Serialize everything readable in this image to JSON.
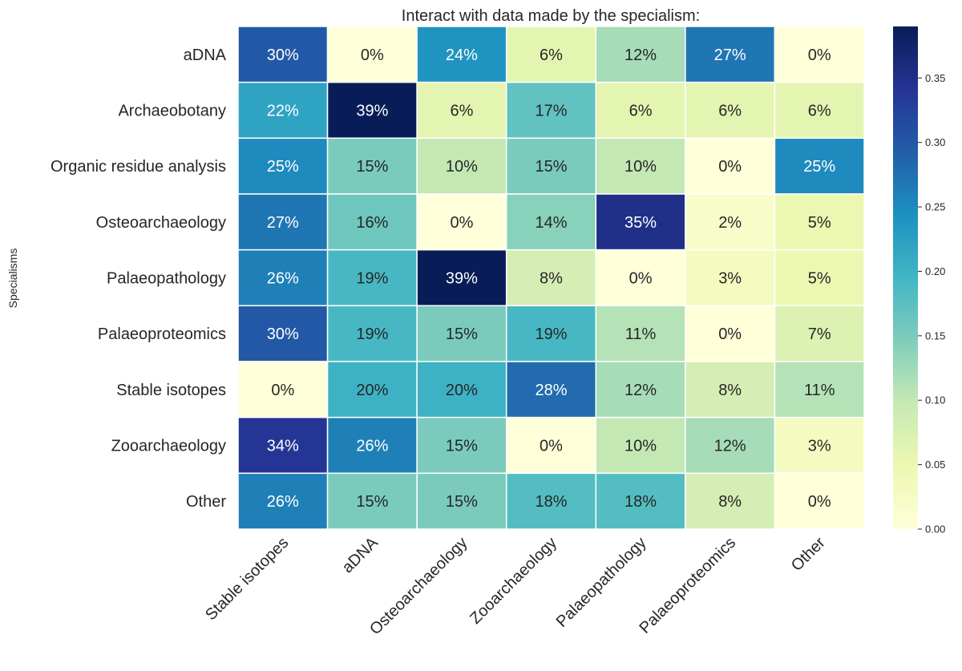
{
  "chart_data": {
    "type": "heatmap",
    "title": "Interact with data made by the specialism:",
    "ylabel": "Specialisms",
    "xlabel": "",
    "rows": [
      "aDNA",
      "Archaeobotany",
      "Organic residue analysis",
      "Osteoarchaeology",
      "Palaeopathology",
      "Palaeoproteomics",
      "Stable isotopes",
      "Zooarchaeology",
      "Other"
    ],
    "columns": [
      "Stable isotopes",
      "aDNA",
      "Osteoarchaeology",
      "Zooarchaeology",
      "Palaeopathology",
      "Palaeoproteomics",
      "Other"
    ],
    "values": [
      [
        0.3,
        0.0,
        0.24,
        0.06,
        0.12,
        0.27,
        0.0
      ],
      [
        0.22,
        0.39,
        0.06,
        0.17,
        0.06,
        0.06,
        0.06
      ],
      [
        0.25,
        0.15,
        0.1,
        0.15,
        0.1,
        0.0,
        0.25
      ],
      [
        0.27,
        0.16,
        0.0,
        0.14,
        0.35,
        0.02,
        0.05
      ],
      [
        0.26,
        0.19,
        0.39,
        0.08,
        0.0,
        0.03,
        0.05
      ],
      [
        0.3,
        0.19,
        0.15,
        0.19,
        0.11,
        0.0,
        0.07
      ],
      [
        0.0,
        0.2,
        0.2,
        0.28,
        0.12,
        0.08,
        0.11
      ],
      [
        0.34,
        0.26,
        0.15,
        0.0,
        0.1,
        0.12,
        0.03
      ],
      [
        0.26,
        0.15,
        0.15,
        0.18,
        0.18,
        0.08,
        0.0
      ]
    ],
    "annotation_format": "percent",
    "colormap": "YlGnBu",
    "colormap_stops": [
      "#ffffd9",
      "#edf8b1",
      "#c7e9b4",
      "#7fcdbb",
      "#41b6c4",
      "#1d91c0",
      "#225ea8",
      "#253494",
      "#081d58"
    ],
    "color_range": [
      0.0,
      0.39
    ],
    "colorbar_ticks": [
      "0.00",
      "0.05",
      "0.10",
      "0.15",
      "0.20",
      "0.25",
      "0.30",
      "0.35"
    ],
    "grid": false
  }
}
